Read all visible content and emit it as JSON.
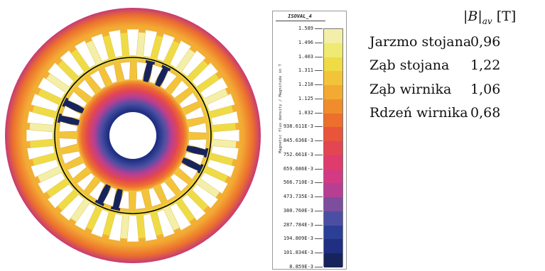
{
  "legend": {
    "title": "ISOVAL_4",
    "axis_label": "Magnetic flux density / Magnitude in T",
    "ticks": [
      "1.589",
      "1.496",
      "1.403",
      "1.311",
      "1.218",
      "1.125",
      "1.032",
      "938.611E-3",
      "845.636E-3",
      "752.661E-3",
      "659.686E-3",
      "566.710E-3",
      "473.735E-3",
      "380.760E-3",
      "287.784E-3",
      "194.809E-3",
      "101.834E-3",
      "8.859E-3"
    ],
    "colors": [
      "#f4efa8",
      "#eeea72",
      "#efdb45",
      "#f3c43a",
      "#f3aa33",
      "#ef8d2d",
      "#ec6f2e",
      "#e8553a",
      "#e34553",
      "#df3b6d",
      "#d23b84",
      "#b63f94",
      "#7d4d9e",
      "#4b4fa3",
      "#2c3f97",
      "#1f2f82",
      "#17245c"
    ]
  },
  "results": {
    "header_b": "|B|",
    "header_sub": "av",
    "header_unit": "[T]",
    "rows": [
      {
        "name": "Jarzmo stojana",
        "value": "0,96"
      },
      {
        "name": "Ząb stojana",
        "value": "1,22"
      },
      {
        "name": "Ząb wirnika",
        "value": "1,06"
      },
      {
        "name": "Rdzeń wirnika",
        "value": "0,68"
      }
    ]
  },
  "motor": {
    "stator_slots": 36,
    "rotor_slots": 28,
    "colors": {
      "yoke_outer": "#c63a73",
      "yoke_mid": "#ec6f2e",
      "yoke_inner": "#f3aa33",
      "stator_tooth": "#efdb45",
      "stator_tooth_hot": "#f4efa8",
      "rotor_tooth": "#f3c43a",
      "rotor_tooth_hot": "#17245c",
      "rotor_core_outer": "#e8553a",
      "rotor_core_mid": "#b63f94",
      "rotor_core_inner": "#2c3f97",
      "slot": "#ffffff",
      "airgap_line": "#000000"
    }
  }
}
